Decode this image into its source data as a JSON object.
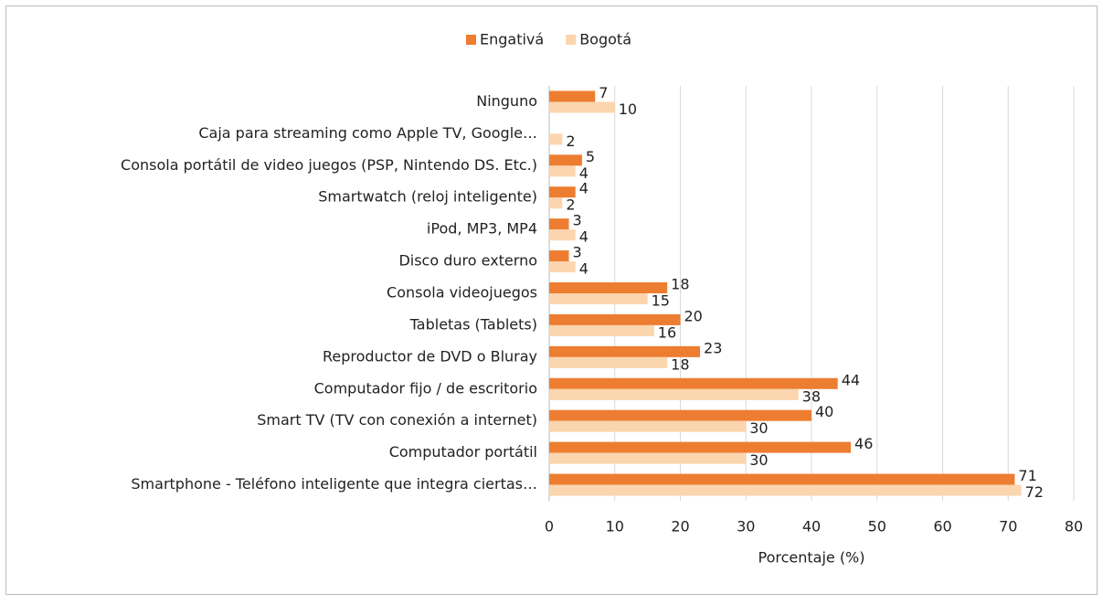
{
  "chart_data": {
    "type": "hbar",
    "x_label": "Porcentaje (%)",
    "categories": [
      "Ninguno",
      "Caja para streaming como Apple TV, Google…",
      "Consola portátil de video juegos (PSP, Nintendo DS. Etc.)",
      "Smartwatch (reloj inteligente)",
      "iPod, MP3, MP4",
      "Disco duro externo",
      "Consola videojuegos",
      "Tabletas (Tablets)",
      "Reproductor de DVD o Bluray",
      "Computador fijo / de escritorio",
      "Smart TV (TV con conexión a internet)",
      "Computador portátil",
      "Smartphone - Teléfono inteligente que integra ciertas…"
    ],
    "series": [
      {
        "name": "Engativá",
        "color": "#ed7d31",
        "values": [
          7,
          null,
          5,
          4,
          3,
          3,
          18,
          20,
          23,
          44,
          40,
          46,
          71
        ]
      },
      {
        "name": "Bogotá",
        "color": "#fbd5ad",
        "values": [
          10,
          2,
          4,
          2,
          4,
          4,
          15,
          16,
          18,
          38,
          30,
          30,
          72
        ]
      }
    ],
    "xlim": [
      0,
      80
    ],
    "xticks": [
      0,
      10,
      20,
      30,
      40,
      50,
      60,
      70,
      80
    ],
    "grid": true,
    "legend": "top"
  }
}
